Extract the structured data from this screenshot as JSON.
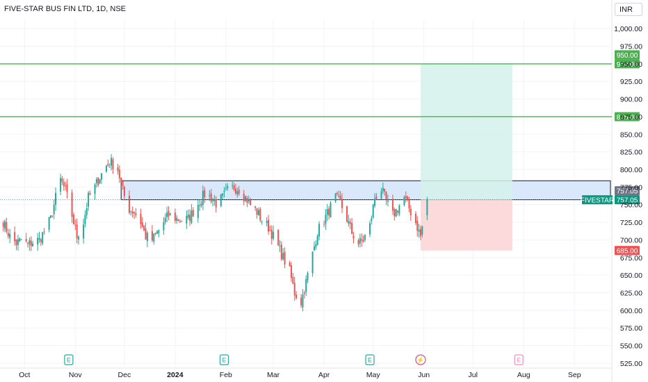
{
  "header": {
    "symbol_title": "FIVE-STAR BUS FIN LTD, 1D, NSE",
    "currency": "INR"
  },
  "colors": {
    "up": "#26a69a",
    "down": "#ef5350",
    "horizontal_line": "#4caf50",
    "zone_fill": "#d4e4fb",
    "profit_fill": "#d5f1eb",
    "loss_fill": "#fcd5d6",
    "grid": "#f0f3fa",
    "axis_text": "#131722"
  },
  "chart_data": {
    "type": "candlestick",
    "symbol": "FIVESTAR",
    "interval": "1D",
    "exchange": "NSE",
    "y_axis": {
      "ticks": [
        "1,000.00",
        "975.00",
        "950.00",
        "925.00",
        "900.00",
        "875.00",
        "850.00",
        "825.00",
        "800.00",
        "775.00",
        "750.00",
        "725.00",
        "700.00",
        "675.00",
        "650.00",
        "625.00",
        "600.00",
        "575.00",
        "550.00",
        "525.00"
      ],
      "ylim": [
        519,
        1013
      ]
    },
    "x_axis": {
      "labels": [
        {
          "label": "Oct",
          "date": "2023-10-01"
        },
        {
          "label": "Nov",
          "date": "2023-11-01"
        },
        {
          "label": "Dec",
          "date": "2023-12-01"
        },
        {
          "label": "2024",
          "date": "2024-01-01"
        },
        {
          "label": "Feb",
          "date": "2024-02-01"
        },
        {
          "label": "Mar",
          "date": "2024-03-01"
        },
        {
          "label": "Apr",
          "date": "2024-04-01"
        },
        {
          "label": "May",
          "date": "2024-05-01"
        },
        {
          "label": "Jun",
          "date": "2024-06-01"
        },
        {
          "label": "Jul",
          "date": "2024-07-01"
        },
        {
          "label": "Aug",
          "date": "2024-08-01"
        },
        {
          "label": "Sep",
          "date": "2024-09-01"
        }
      ],
      "xlim": [
        "2023-09-16",
        "2024-09-23"
      ]
    },
    "last_price": 757.05,
    "last_price_label": "757.05",
    "symbol_label": "FIVESTAR",
    "horizontal_lines": [
      {
        "price": 950.0,
        "label": "950.00"
      },
      {
        "price": 875.0,
        "label": "875.00"
      }
    ],
    "rectangle_zone": {
      "from": "2023-11-29",
      "to": "2024-09-23",
      "top": 784,
      "bottom": 757.05
    },
    "position_tool": {
      "type": "long",
      "from": "2024-05-30",
      "to": "2024-07-25",
      "entry": 757.05,
      "target": 950.0,
      "stop": 685.0,
      "target_label": "950.00",
      "stop_label": "685.00",
      "entry_label": "757.05"
    },
    "event_markers": [
      {
        "date": "2023-10-28",
        "type": "earnings",
        "label": "E"
      },
      {
        "date": "2024-01-31",
        "type": "earnings",
        "label": "E"
      },
      {
        "date": "2024-04-29",
        "type": "earnings",
        "label": "E"
      },
      {
        "date": "2024-05-30",
        "type": "dividend",
        "label": "⚡"
      },
      {
        "date": "2024-07-29",
        "type": "earnings_upcoming",
        "label": "E"
      }
    ],
    "close_path": [
      [
        "2023-09-16",
        740
      ],
      [
        "2023-09-19",
        720
      ],
      [
        "2023-09-22",
        705
      ],
      [
        "2023-09-26",
        695
      ],
      [
        "2023-09-29",
        700
      ],
      [
        "2023-10-03",
        693
      ],
      [
        "2023-10-06",
        697
      ],
      [
        "2023-10-10",
        700
      ],
      [
        "2023-10-13",
        712
      ],
      [
        "2023-10-17",
        730
      ],
      [
        "2023-10-20",
        760
      ],
      [
        "2023-10-23",
        785
      ],
      [
        "2023-10-26",
        770
      ],
      [
        "2023-10-30",
        735
      ],
      [
        "2023-11-02",
        705
      ],
      [
        "2023-11-06",
        725
      ],
      [
        "2023-11-09",
        760
      ],
      [
        "2023-11-13",
        775
      ],
      [
        "2023-11-16",
        790
      ],
      [
        "2023-11-20",
        805
      ],
      [
        "2023-11-23",
        810
      ],
      [
        "2023-11-27",
        800
      ],
      [
        "2023-11-30",
        770
      ],
      [
        "2023-12-03",
        745
      ],
      [
        "2023-12-07",
        740
      ],
      [
        "2023-12-11",
        725
      ],
      [
        "2023-12-14",
        705
      ],
      [
        "2023-12-18",
        700
      ],
      [
        "2023-12-21",
        710
      ],
      [
        "2023-12-25",
        725
      ],
      [
        "2023-12-28",
        735
      ],
      [
        "2024-01-02",
        730
      ],
      [
        "2024-01-05",
        728
      ],
      [
        "2024-01-09",
        730
      ],
      [
        "2024-01-12",
        740
      ],
      [
        "2024-01-16",
        755
      ],
      [
        "2024-01-19",
        765
      ],
      [
        "2024-01-23",
        760
      ],
      [
        "2024-01-26",
        752
      ],
      [
        "2024-01-30",
        760
      ],
      [
        "2024-02-02",
        770
      ],
      [
        "2024-02-06",
        775
      ],
      [
        "2024-02-09",
        772
      ],
      [
        "2024-02-13",
        760
      ],
      [
        "2024-02-16",
        750
      ],
      [
        "2024-02-20",
        740
      ],
      [
        "2024-02-23",
        728
      ],
      [
        "2024-02-27",
        718
      ],
      [
        "2024-03-01",
        705
      ],
      [
        "2024-03-04",
        690
      ],
      [
        "2024-03-07",
        675
      ],
      [
        "2024-03-11",
        655
      ],
      [
        "2024-03-14",
        625
      ],
      [
        "2024-03-18",
        612
      ],
      [
        "2024-03-21",
        640
      ],
      [
        "2024-03-25",
        680
      ],
      [
        "2024-03-28",
        712
      ],
      [
        "2024-04-01",
        728
      ],
      [
        "2024-04-04",
        742
      ],
      [
        "2024-04-08",
        760
      ],
      [
        "2024-04-11",
        752
      ],
      [
        "2024-04-15",
        730
      ],
      [
        "2024-04-18",
        710
      ],
      [
        "2024-04-22",
        695
      ],
      [
        "2024-04-25",
        700
      ],
      [
        "2024-04-29",
        720
      ],
      [
        "2024-05-02",
        760
      ],
      [
        "2024-05-06",
        772
      ],
      [
        "2024-05-09",
        755
      ],
      [
        "2024-05-13",
        735
      ],
      [
        "2024-05-16",
        745
      ],
      [
        "2024-05-20",
        760
      ],
      [
        "2024-05-23",
        745
      ],
      [
        "2024-05-27",
        725
      ],
      [
        "2024-05-30",
        705
      ],
      [
        "2024-06-03",
        757
      ]
    ]
  }
}
